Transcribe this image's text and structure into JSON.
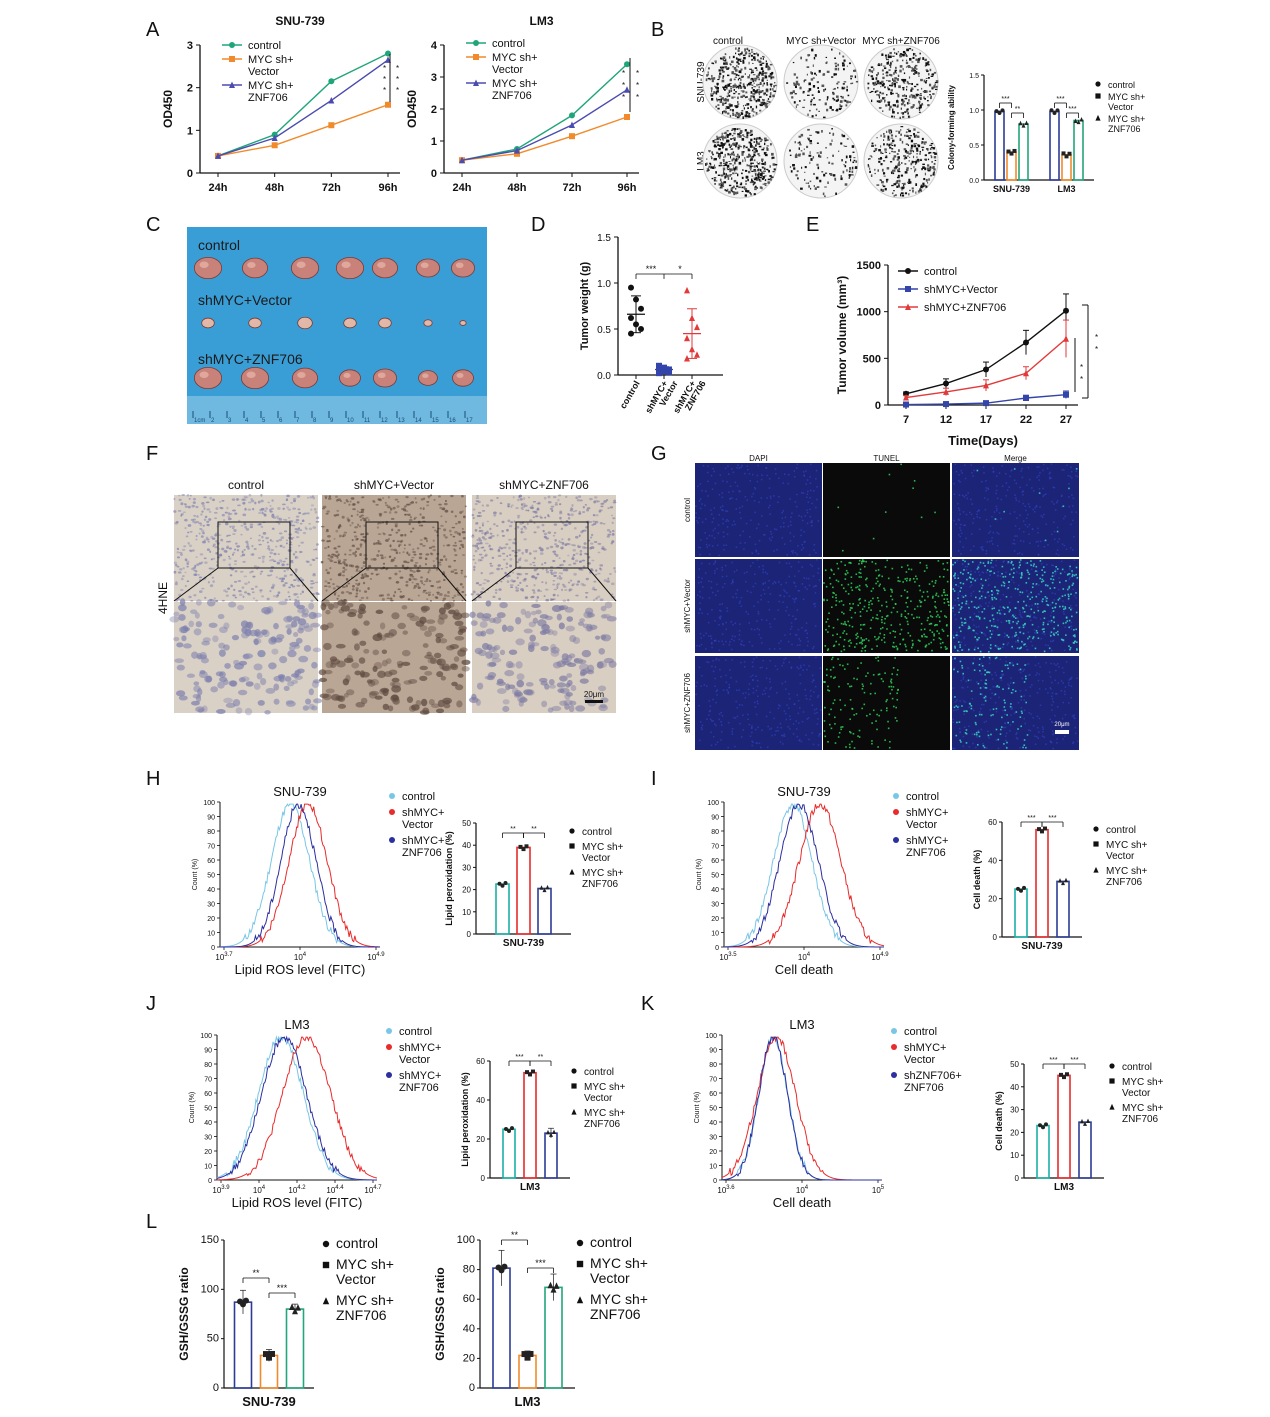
{
  "colors": {
    "control_green": "#1fa57a",
    "vector_orange": "#f08a2c",
    "znf_purple": "#4b4bb0",
    "black": "#111111",
    "e_blue": "#3344aa",
    "e_red": "#e23a3a",
    "hist_light": "#79c6e6",
    "hist_red": "#e82b2b",
    "hist_navy": "#2b2fa0",
    "bar_navy": "#2c3c95",
    "bar_orange": "#f08a2c",
    "bar_green": "#24a57c",
    "bar_teal": "#1bb0a5",
    "tissue_blue": "#3a9ed6",
    "ihc_bg": "#d8cfc6",
    "fluor_bg": "#1c2478",
    "tunel_bg": "#0a0a0a",
    "tunel_green": "#2fd35a"
  },
  "panels": {
    "A": "A",
    "B": "B",
    "C": "C",
    "D": "D",
    "E": "E",
    "F": "F",
    "G": "G",
    "H": "H",
    "I": "I",
    "J": "J",
    "K": "K",
    "L": "L"
  },
  "stars": {
    "s1": "*",
    "s2": "**",
    "s3": "***"
  },
  "b_images": {
    "cols": [
      "control",
      "MYC sh+Vector",
      "MYC sh+ZNF706"
    ],
    "rows": [
      "SNU-739",
      "LM3"
    ]
  },
  "c_photo": {
    "labels": [
      "control",
      "shMYC+Vector",
      "shMYC+ZNF706"
    ],
    "ruler": [
      "1cm",
      "2",
      "3",
      "4",
      "5",
      "6",
      "7",
      "8",
      "9",
      "10",
      "11",
      "12",
      "13",
      "14",
      "15",
      "16",
      "17"
    ]
  },
  "f_ihc": {
    "cols": [
      "control",
      "shMYC+Vector",
      "shMYC+ZNF706"
    ],
    "row_label": "4HNE",
    "scale": "20μm"
  },
  "g_fluor": {
    "cols": [
      "DAPI",
      "TUNEL",
      "Merge"
    ],
    "rows": [
      "control",
      "shMYC+Vector",
      "shMYC+ZNF706"
    ],
    "scale": "20μm"
  },
  "legend_texts": {
    "myc_vector": [
      "MYC sh+",
      "Vector"
    ],
    "myc_znf": [
      "MYC sh+",
      "ZNF706"
    ],
    "sh_vector": [
      "shMYC+",
      "Vector"
    ],
    "sh_znf": [
      "shMYC+",
      "ZNF706"
    ],
    "shznf_znf": [
      "shZNF706+",
      "ZNF706"
    ]
  },
  "chart_data": [
    {
      "panel": "A",
      "type": "line",
      "title": "SNU-739",
      "categories": [
        "24h",
        "48h",
        "72h",
        "96h"
      ],
      "ylabel": "OD450",
      "ylim": [
        0,
        3
      ],
      "yticks": [
        0,
        1,
        2,
        3
      ],
      "series": [
        {
          "name": "control",
          "values": [
            0.4,
            0.9,
            2.15,
            2.8
          ]
        },
        {
          "name": "MYC sh+ Vector",
          "values": [
            0.4,
            0.65,
            1.12,
            1.6
          ]
        },
        {
          "name": "MYC sh+ ZNF706",
          "values": [
            0.4,
            0.82,
            1.7,
            2.65
          ]
        }
      ],
      "annotations": [
        "*",
        "*",
        "*",
        "*",
        "*",
        "*"
      ]
    },
    {
      "panel": "A",
      "type": "line",
      "title": "LM3",
      "categories": [
        "24h",
        "48h",
        "72h",
        "96h"
      ],
      "ylabel": "OD450",
      "ylim": [
        0,
        4
      ],
      "yticks": [
        0,
        1,
        2,
        3,
        4
      ],
      "series": [
        {
          "name": "control",
          "values": [
            0.4,
            0.75,
            1.8,
            3.4
          ]
        },
        {
          "name": "MYC sh+ Vector",
          "values": [
            0.4,
            0.6,
            1.15,
            1.75
          ]
        },
        {
          "name": "MYC sh+ ZNF706",
          "values": [
            0.4,
            0.7,
            1.5,
            2.6
          ]
        }
      ],
      "annotations": [
        "*",
        "*",
        "*",
        "*",
        "*",
        "*"
      ]
    },
    {
      "panel": "B",
      "type": "bar",
      "ylabel": "Colony-forming ability",
      "categories": [
        "SNU-739",
        "LM3"
      ],
      "ylim": [
        0,
        1.5
      ],
      "yticks": [
        0.0,
        0.5,
        1.0,
        1.5
      ],
      "series": [
        {
          "name": "control",
          "values": [
            0.98,
            0.98
          ]
        },
        {
          "name": "MYC sh+ Vector",
          "values": [
            0.4,
            0.36
          ]
        },
        {
          "name": "MYC sh+ ZNF706",
          "values": [
            0.8,
            0.85
          ]
        }
      ],
      "significance": [
        "***",
        "**",
        "***",
        "***"
      ]
    },
    {
      "panel": "D",
      "type": "scatter",
      "ylabel": "Tumor weight (g)",
      "categories": [
        "control",
        "shMYC+ Vector",
        "shMYC+ ZNF706"
      ],
      "ylim": [
        0,
        1.5
      ],
      "yticks": [
        0.0,
        0.5,
        1.0,
        1.5
      ],
      "groups": [
        {
          "points": [
            0.95,
            0.82,
            0.72,
            0.62,
            0.55,
            0.5,
            0.45
          ],
          "mean": 0.66,
          "sd": 0.2
        },
        {
          "points": [
            0.1,
            0.08,
            0.06,
            0.05,
            0.04,
            0.03,
            0.02
          ],
          "mean": 0.06,
          "sd": 0.03
        },
        {
          "points": [
            0.92,
            0.62,
            0.52,
            0.4,
            0.28,
            0.22,
            0.18
          ],
          "mean": 0.45,
          "sd": 0.27
        }
      ],
      "significance": [
        "***",
        "*"
      ]
    },
    {
      "panel": "E",
      "type": "line",
      "ylabel": "Tumor volume (mm³)",
      "xlabel": "Time(Days)",
      "categories": [
        "7",
        "12",
        "17",
        "22",
        "27"
      ],
      "ylim": [
        0,
        1500
      ],
      "yticks": [
        0,
        500,
        1000,
        1500
      ],
      "series": [
        {
          "name": "control",
          "values": [
            120,
            230,
            380,
            670,
            1010
          ],
          "err": [
            20,
            50,
            80,
            130,
            180
          ]
        },
        {
          "name": "shMYC+Vector",
          "values": [
            5,
            10,
            20,
            75,
            110
          ],
          "err": [
            3,
            5,
            10,
            30,
            40
          ]
        },
        {
          "name": "shMYC+ZNF706",
          "values": [
            80,
            140,
            210,
            340,
            710
          ],
          "err": [
            20,
            40,
            60,
            70,
            200
          ]
        }
      ],
      "annotations": [
        "*",
        "*",
        "*",
        "*"
      ]
    },
    {
      "panel": "H",
      "type": "area",
      "title": "SNU-739",
      "xlabel": "Lipid ROS level (FITC)",
      "ylabel": "Count (%)",
      "xticks": [
        "10^3.7",
        "10^4",
        "10^4.9"
      ],
      "ylim": [
        0,
        100
      ],
      "yticks": [
        0,
        10,
        20,
        30,
        40,
        50,
        60,
        70,
        80,
        90,
        100
      ],
      "series": [
        {
          "name": "control",
          "peak": 0.44,
          "width": 0.12
        },
        {
          "name": "shMYC+ Vector",
          "peak": 0.55,
          "width": 0.12
        },
        {
          "name": "shMYC+ ZNF706",
          "peak": 0.49,
          "width": 0.11
        }
      ]
    },
    {
      "panel": "H",
      "type": "bar",
      "ylabel": "Lipid peroxidation (%)",
      "categories": [
        "SNU-739"
      ],
      "ylim": [
        0,
        50
      ],
      "yticks": [
        0,
        10,
        20,
        30,
        40,
        50
      ],
      "series": [
        {
          "name": "control",
          "values": [
            22.5
          ]
        },
        {
          "name": "MYC sh+ Vector",
          "values": [
            39
          ]
        },
        {
          "name": "MYC sh+ ZNF706",
          "values": [
            20.5
          ]
        }
      ],
      "significance": [
        "**",
        "**"
      ]
    },
    {
      "panel": "I",
      "type": "area",
      "title": "SNU-739",
      "xlabel": "Cell death",
      "ylabel": "Count (%)",
      "xticks": [
        "10^3.5",
        "10^4",
        "10^4.9"
      ],
      "ylim": [
        0,
        100
      ],
      "yticks": [
        0,
        10,
        20,
        30,
        40,
        50,
        60,
        70,
        80,
        90,
        100
      ],
      "series": [
        {
          "name": "control",
          "peak": 0.43,
          "width": 0.12
        },
        {
          "name": "shMYC+ Vector",
          "peak": 0.6,
          "width": 0.13
        },
        {
          "name": "shMYC+ ZNF706",
          "peak": 0.47,
          "width": 0.12
        }
      ]
    },
    {
      "panel": "I",
      "type": "bar",
      "ylabel": "Cell death (%)",
      "categories": [
        "SNU-739"
      ],
      "ylim": [
        0,
        60
      ],
      "yticks": [
        0,
        20,
        40,
        60
      ],
      "series": [
        {
          "name": "control",
          "values": [
            25
          ]
        },
        {
          "name": "MYC sh+ Vector",
          "values": [
            56
          ]
        },
        {
          "name": "MYC sh+ ZNF706",
          "values": [
            29
          ]
        }
      ],
      "significance": [
        "***",
        "***"
      ]
    },
    {
      "panel": "J",
      "type": "area",
      "title": "LM3",
      "xlabel": "Lipid ROS level (FITC)",
      "ylabel": "Count (%)",
      "xticks": [
        "10^3.9",
        "10^4",
        "10^4.2",
        "10^4.4",
        "10^4.7"
      ],
      "ylim": [
        0,
        100
      ],
      "yticks": [
        0,
        10,
        20,
        30,
        40,
        50,
        60,
        70,
        80,
        90,
        100
      ],
      "series": [
        {
          "name": "control",
          "peak": 0.4,
          "width": 0.14
        },
        {
          "name": "shMYC+ Vector",
          "peak": 0.56,
          "width": 0.15
        },
        {
          "name": "shMYC+ ZNF706",
          "peak": 0.42,
          "width": 0.14
        }
      ]
    },
    {
      "panel": "J",
      "type": "bar",
      "ylabel": "Lipid peroxidation (%)",
      "categories": [
        "LM3"
      ],
      "ylim": [
        0,
        60
      ],
      "yticks": [
        0,
        20,
        40,
        60
      ],
      "series": [
        {
          "name": "control",
          "values": [
            25
          ]
        },
        {
          "name": "MYC sh+ Vector",
          "values": [
            54
          ]
        },
        {
          "name": "MYC sh+ ZNF706",
          "values": [
            23
          ]
        }
      ],
      "significance": [
        "***",
        "**"
      ]
    },
    {
      "panel": "K",
      "type": "area",
      "title": "LM3",
      "xlabel": "Cell death",
      "ylabel": "Count (%)",
      "xticks": [
        "10^3.6",
        "10^4",
        "10^5"
      ],
      "ylim": [
        0,
        100
      ],
      "yticks": [
        0,
        10,
        20,
        30,
        40,
        50,
        60,
        70,
        80,
        90,
        100
      ],
      "series": [
        {
          "name": "control",
          "peak": 0.32,
          "width": 0.09
        },
        {
          "name": "shMYC+ Vector",
          "peak": 0.34,
          "width": 0.12
        },
        {
          "name": "shZNF706+ ZNF706",
          "peak": 0.32,
          "width": 0.09
        }
      ]
    },
    {
      "panel": "K",
      "type": "bar",
      "ylabel": "Cell death (%)",
      "categories": [
        "LM3"
      ],
      "ylim": [
        0,
        50
      ],
      "yticks": [
        0,
        10,
        20,
        30,
        40,
        50
      ],
      "series": [
        {
          "name": "control",
          "values": [
            23
          ]
        },
        {
          "name": "MYC sh+ Vector",
          "values": [
            45
          ]
        },
        {
          "name": "MYC sh+ ZNF706",
          "values": [
            24.5
          ]
        }
      ],
      "significance": [
        "***",
        "***"
      ]
    },
    {
      "panel": "L",
      "type": "bar",
      "ylabel": "GSH/GSSG ratio",
      "categories": [
        "SNU-739"
      ],
      "ylim": [
        0,
        150
      ],
      "yticks": [
        0,
        50,
        100,
        150
      ],
      "series": [
        {
          "name": "control",
          "values": [
            87
          ]
        },
        {
          "name": "MYC sh+ Vector",
          "values": [
            33
          ]
        },
        {
          "name": "MYC sh+ ZNF706",
          "values": [
            80
          ]
        }
      ],
      "significance": [
        "**",
        "***"
      ]
    },
    {
      "panel": "L",
      "type": "bar",
      "ylabel": "GSH/GSSG ratio",
      "categories": [
        "LM3"
      ],
      "ylim": [
        0,
        100
      ],
      "yticks": [
        0,
        20,
        40,
        60,
        80,
        100
      ],
      "series": [
        {
          "name": "control",
          "values": [
            81
          ]
        },
        {
          "name": "MYC sh+ Vector",
          "values": [
            22
          ]
        },
        {
          "name": "MYC sh+ ZNF706",
          "values": [
            68
          ]
        }
      ],
      "significance": [
        "**",
        "***"
      ]
    }
  ]
}
